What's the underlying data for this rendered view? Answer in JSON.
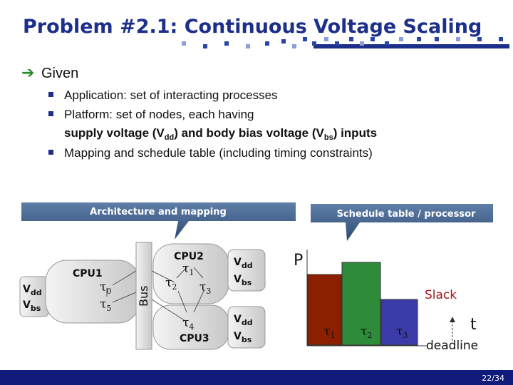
{
  "slide": {
    "title": "Problem #2.1: Continuous Voltage Scaling",
    "heading": "Given",
    "bullets": [
      "Application: set of interacting processes",
      "Platform: set of nodes, each having",
      [
        "supply voltage (V",
        "dd",
        ") and body bias voltage (V",
        "bs",
        ") inputs"
      ],
      "Mapping and schedule table (including timing constraints)"
    ],
    "callouts": [
      "Architecture and mapping",
      "Schedule table / processor"
    ],
    "architecture": {
      "cpus": [
        "CPU1",
        "CPU2",
        "CPU3"
      ],
      "bus": "Bus",
      "processes": [
        [
          "τ",
          "0"
        ],
        [
          "τ",
          "1"
        ],
        [
          "τ",
          "2"
        ],
        [
          "τ",
          "3"
        ],
        [
          "τ",
          "4"
        ],
        [
          "τ",
          "5"
        ]
      ],
      "voltages": [
        [
          [
            "V",
            "dd"
          ],
          [
            "V",
            "bs"
          ]
        ],
        [
          [
            "V",
            "dd"
          ],
          [
            "V",
            "bs"
          ]
        ],
        [
          [
            "V",
            "dd"
          ],
          [
            "V",
            "bs"
          ]
        ]
      ]
    },
    "schedule": {
      "axis": "P",
      "tasks": [
        [
          "τ",
          "1"
        ],
        [
          "τ",
          "2"
        ],
        [
          "τ",
          "3"
        ]
      ],
      "slack": "Slack",
      "time": "t",
      "deadline": "deadline"
    },
    "page": "22/34"
  }
}
